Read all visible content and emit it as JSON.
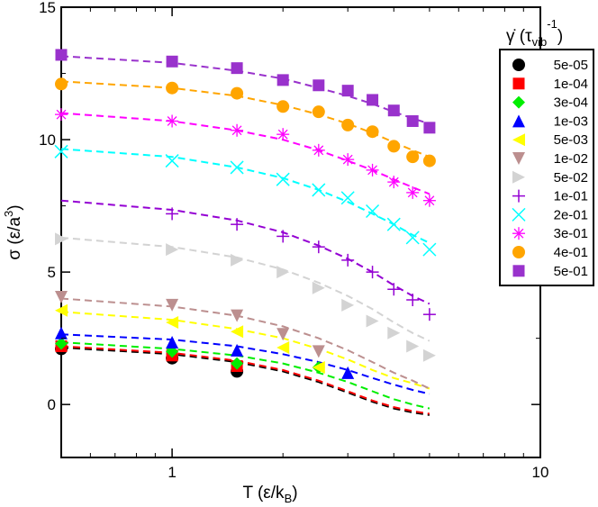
{
  "chart_data": {
    "type": "scatter",
    "xscale": "log",
    "xlim": [
      0.5,
      10
    ],
    "ylim": [
      -2,
      15
    ],
    "xlabel_main": "T (ε/k",
    "xlabel_sub": "B",
    "xlabel_end": ")",
    "ylabel_main": "σ (ε/a",
    "ylabel_sup": "3",
    "ylabel_end": ")",
    "xticks": [
      {
        "value": 1,
        "label": "1"
      },
      {
        "value": 10,
        "label": "10"
      }
    ],
    "yticks": [
      {
        "value": 0,
        "label": "0"
      },
      {
        "value": 5,
        "label": "5"
      },
      {
        "value": 10,
        "label": "10"
      },
      {
        "value": 15,
        "label": "15"
      }
    ],
    "legend_title": {
      "main": "γ̇ (τ",
      "sub": "vib",
      "sup": "-1",
      "end": ")"
    },
    "legend_position": "top-right",
    "x": [
      0.5,
      1.0,
      1.5,
      2.0,
      2.5,
      3.0,
      3.5,
      4.0,
      4.5,
      5.0
    ],
    "series": [
      {
        "name": "5e-05",
        "color": "#000000",
        "marker": "circle",
        "values": [
          2.1,
          1.75,
          1.25,
          null,
          null,
          null,
          null,
          null,
          null,
          null
        ],
        "fit": [
          2.15,
          1.9,
          1.6,
          1.25,
          0.85,
          0.45,
          0.1,
          -0.15,
          -0.3,
          -0.4
        ]
      },
      {
        "name": "1e-04",
        "color": "#ff0000",
        "marker": "square",
        "values": [
          2.2,
          1.85,
          1.45,
          null,
          null,
          null,
          null,
          null,
          null,
          null
        ],
        "fit": [
          2.2,
          1.95,
          1.65,
          1.3,
          0.9,
          0.5,
          0.15,
          -0.1,
          -0.25,
          -0.35
        ]
      },
      {
        "name": "3e-04",
        "color": "#00ee00",
        "marker": "diamond",
        "values": [
          2.3,
          2.0,
          1.55,
          null,
          1.4,
          null,
          null,
          null,
          null,
          null
        ],
        "fit": [
          2.35,
          2.1,
          1.85,
          1.55,
          1.2,
          0.85,
          0.5,
          0.2,
          0.0,
          -0.15
        ]
      },
      {
        "name": "1e-03",
        "color": "#0000ff",
        "marker": "triangle-up",
        "values": [
          2.7,
          2.35,
          2.05,
          null,
          null,
          1.2,
          null,
          null,
          null,
          null
        ],
        "fit": [
          2.65,
          2.45,
          2.2,
          1.9,
          1.6,
          1.3,
          1.0,
          0.75,
          0.55,
          0.4
        ]
      },
      {
        "name": "5e-03",
        "color": "#ffff00",
        "marker": "triangle-left",
        "values": [
          3.55,
          3.1,
          2.75,
          2.15,
          1.4,
          null,
          null,
          null,
          null,
          null
        ],
        "fit": [
          3.5,
          3.2,
          2.85,
          2.5,
          2.1,
          1.7,
          1.3,
          1.0,
          0.8,
          0.6
        ]
      },
      {
        "name": "1e-02",
        "color": "#bc8f8f",
        "marker": "triangle-down",
        "values": [
          4.05,
          3.75,
          3.35,
          2.65,
          2.0,
          null,
          null,
          null,
          null,
          null
        ],
        "fit": [
          4.0,
          3.7,
          3.35,
          2.95,
          2.5,
          2.05,
          1.6,
          1.2,
          0.9,
          0.6
        ]
      },
      {
        "name": "5e-02",
        "color": "#d3d3d3",
        "marker": "triangle-right",
        "values": [
          6.25,
          5.85,
          5.45,
          5.0,
          4.4,
          3.75,
          3.15,
          2.7,
          2.2,
          1.85
        ],
        "fit": [
          6.3,
          5.95,
          5.55,
          5.1,
          4.6,
          4.1,
          3.6,
          3.1,
          2.7,
          2.4
        ]
      },
      {
        "name": "1e-01",
        "color": "#9400d3",
        "marker": "plus",
        "values": [
          null,
          7.2,
          6.8,
          6.35,
          5.95,
          5.45,
          5.0,
          4.35,
          3.95,
          3.4
        ],
        "fit": [
          7.7,
          7.35,
          6.95,
          6.5,
          6.0,
          5.5,
          5.0,
          4.5,
          4.1,
          3.8
        ]
      },
      {
        "name": "2e-01",
        "color": "#00ffff",
        "marker": "x",
        "values": [
          9.55,
          9.2,
          8.95,
          8.5,
          8.1,
          7.8,
          7.3,
          6.8,
          6.3,
          5.85
        ],
        "fit": [
          9.65,
          9.35,
          8.95,
          8.55,
          8.1,
          7.65,
          7.2,
          6.8,
          6.4,
          6.1
        ]
      },
      {
        "name": "3e-01",
        "color": "#ff00ff",
        "marker": "star",
        "values": [
          10.95,
          10.7,
          10.35,
          10.2,
          9.6,
          9.25,
          8.85,
          8.4,
          8.0,
          7.7
        ],
        "fit": [
          11.0,
          10.7,
          10.35,
          10.0,
          9.6,
          9.2,
          8.85,
          8.5,
          8.2,
          7.95
        ]
      },
      {
        "name": "4e-01",
        "color": "#ffa500",
        "marker": "circle",
        "values": [
          12.1,
          11.95,
          11.75,
          11.25,
          11.05,
          10.55,
          10.3,
          9.75,
          9.35,
          9.2
        ],
        "fit": [
          12.2,
          11.95,
          11.65,
          11.3,
          10.95,
          10.6,
          10.25,
          9.9,
          9.6,
          9.35
        ]
      },
      {
        "name": "5e-01",
        "color": "#9932cc",
        "marker": "square",
        "values": [
          13.2,
          12.95,
          12.7,
          12.25,
          12.05,
          11.85,
          11.5,
          11.1,
          10.7,
          10.45
        ],
        "fit": [
          13.15,
          12.9,
          12.6,
          12.3,
          11.95,
          11.65,
          11.35,
          11.05,
          10.8,
          10.6
        ]
      }
    ]
  }
}
